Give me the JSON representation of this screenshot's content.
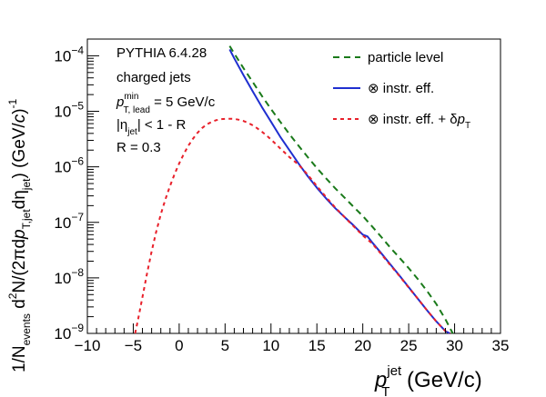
{
  "chart_data": {
    "type": "line",
    "log_y": true,
    "xlim": [
      -10,
      35
    ],
    "ylim": [
      1e-09,
      0.0002
    ],
    "x_ticks": [
      "−10",
      "−5",
      "0",
      "5",
      "10",
      "15",
      "20",
      "25",
      "30",
      "35"
    ],
    "x_tick_values": [
      -10,
      -5,
      0,
      5,
      10,
      15,
      20,
      25,
      30,
      35
    ],
    "y_ticks": [
      {
        "value": 1e-09,
        "mant": "10",
        "exp": "−9"
      },
      {
        "value": 1e-08,
        "mant": "10",
        "exp": "−8"
      },
      {
        "value": 1e-07,
        "mant": "10",
        "exp": "−7"
      },
      {
        "value": 1e-06,
        "mant": "10",
        "exp": "−6"
      },
      {
        "value": 1e-05,
        "mant": "10",
        "exp": "−5"
      },
      {
        "value": 0.0001,
        "mant": "10",
        "exp": "−4"
      }
    ],
    "xlabel": {
      "main": "p",
      "sub": "T",
      "sup": "jet",
      "unit": " (GeV/c)"
    },
    "ylabel": {
      "parts": [
        {
          "t": "1/N"
        },
        {
          "t": "events",
          "sub": true
        },
        {
          "t": " d"
        },
        {
          "t": "2",
          "sup": true
        },
        {
          "t": "N/(2πd"
        },
        {
          "t": "p",
          "italic": true
        },
        {
          "t": "T,jet",
          "sub": true
        },
        {
          "t": "dη"
        },
        {
          "t": "jet",
          "sub": true
        },
        {
          "t": ") (GeV/"
        },
        {
          "t": "c",
          "italic": true
        },
        {
          "t": ")"
        },
        {
          "t": "-1",
          "sup": true
        }
      ]
    },
    "annotations": {
      "generator": "PYTHIA 6.4.28",
      "jets": "charged jets",
      "ptmin_p": "p",
      "ptmin_sup": "min",
      "ptmin_sub": "T, lead",
      "ptmin_value": " =  5 GeV/c",
      "eta_open": "|η",
      "eta_sub": "jet",
      "eta_close": "| < 1 - R",
      "radius": "R = 0.3"
    },
    "series": [
      {
        "name": "particle level",
        "color": "#1a7a1a",
        "style": "dashed",
        "x": [
          5.5,
          6,
          7,
          8,
          9,
          10,
          11,
          12,
          13,
          14,
          15,
          16,
          17,
          18,
          19,
          20,
          21,
          22,
          23,
          24,
          25,
          26,
          27,
          28,
          29,
          29.8
        ],
        "y": [
          0.00015,
          0.00011,
          6e-05,
          3.4e-05,
          1.9e-05,
          1.1e-05,
          6.5e-06,
          3.9e-06,
          2.4e-06,
          1.5e-06,
          9.5e-07,
          6.2e-07,
          4.1e-07,
          2.8e-07,
          1.9e-07,
          1.3e-07,
          8.5e-08,
          5.5e-08,
          3.5e-08,
          2.3e-08,
          1.5e-08,
          9.5e-09,
          5.8e-09,
          3.4e-09,
          1.8e-09,
          1e-09
        ]
      },
      {
        "name_prefix": "⊗",
        "name": " instr. eff.",
        "color": "#1f2fd0",
        "style": "solid",
        "x": [
          5.5,
          6,
          7,
          8,
          9,
          10,
          11,
          12,
          13,
          14,
          15,
          16,
          17,
          18,
          19,
          20,
          20.5,
          21,
          22,
          23,
          24,
          25,
          26,
          27,
          28,
          29,
          29.5
        ],
        "y": [
          0.00013,
          9e-05,
          4.5e-05,
          2.3e-05,
          1.2e-05,
          6.5e-06,
          3.5e-06,
          2e-06,
          1.15e-06,
          6.8e-07,
          4.2e-07,
          2.7e-07,
          1.8e-07,
          1.25e-07,
          8.8e-08,
          6e-08,
          5.6e-08,
          4.4e-08,
          2.8e-08,
          1.75e-08,
          1.1e-08,
          6.8e-09,
          4.2e-09,
          2.6e-09,
          1.65e-09,
          1.1e-09,
          1e-09
        ]
      },
      {
        "name_prefix": "⊗",
        "name": " instr. eff. + δ",
        "name_p": "p",
        "name_sub": "T",
        "color": "#e8202a",
        "style": "dotted",
        "x": [
          -4.8,
          -4.5,
          -4,
          -3.5,
          -3,
          -2.5,
          -2,
          -1.5,
          -1,
          -0.5,
          0,
          0.5,
          1,
          1.5,
          2,
          2.5,
          3,
          3.5,
          4,
          4.5,
          5,
          5.5,
          6,
          6.5,
          7,
          7.5,
          8,
          8.5,
          9,
          9.5,
          10,
          10.5,
          11,
          11.5,
          12,
          12.5,
          13,
          14,
          15,
          16,
          17,
          18,
          19,
          20,
          21,
          22,
          23,
          24,
          25,
          26,
          27,
          28,
          29,
          29.5
        ],
        "y": [
          1e-09,
          1.7e-09,
          4.5e-09,
          1.2e-08,
          3e-08,
          6.8e-08,
          1.4e-07,
          2.6e-07,
          4.5e-07,
          7.4e-07,
          1.15e-06,
          1.7e-06,
          2.4e-06,
          3.2e-06,
          4.1e-06,
          5e-06,
          5.8e-06,
          6.4e-06,
          6.9e-06,
          7.2e-06,
          7.3e-06,
          7.35e-06,
          7.3e-06,
          7.05e-06,
          6.7e-06,
          6.2e-06,
          5.6e-06,
          4.95e-06,
          4.3e-06,
          3.7e-06,
          3.1e-06,
          2.6e-06,
          2.15e-06,
          1.8e-06,
          1.5e-06,
          1.28e-06,
          1.1e-06,
          7.2e-07,
          4.5e-07,
          2.85e-07,
          1.85e-07,
          1.25e-07,
          8.5e-08,
          5.8e-08,
          4.2e-08,
          2.7e-08,
          1.7e-08,
          1.08e-08,
          6.7e-09,
          4.2e-09,
          2.6e-09,
          1.65e-09,
          1.1e-09,
          1e-09
        ]
      }
    ]
  }
}
